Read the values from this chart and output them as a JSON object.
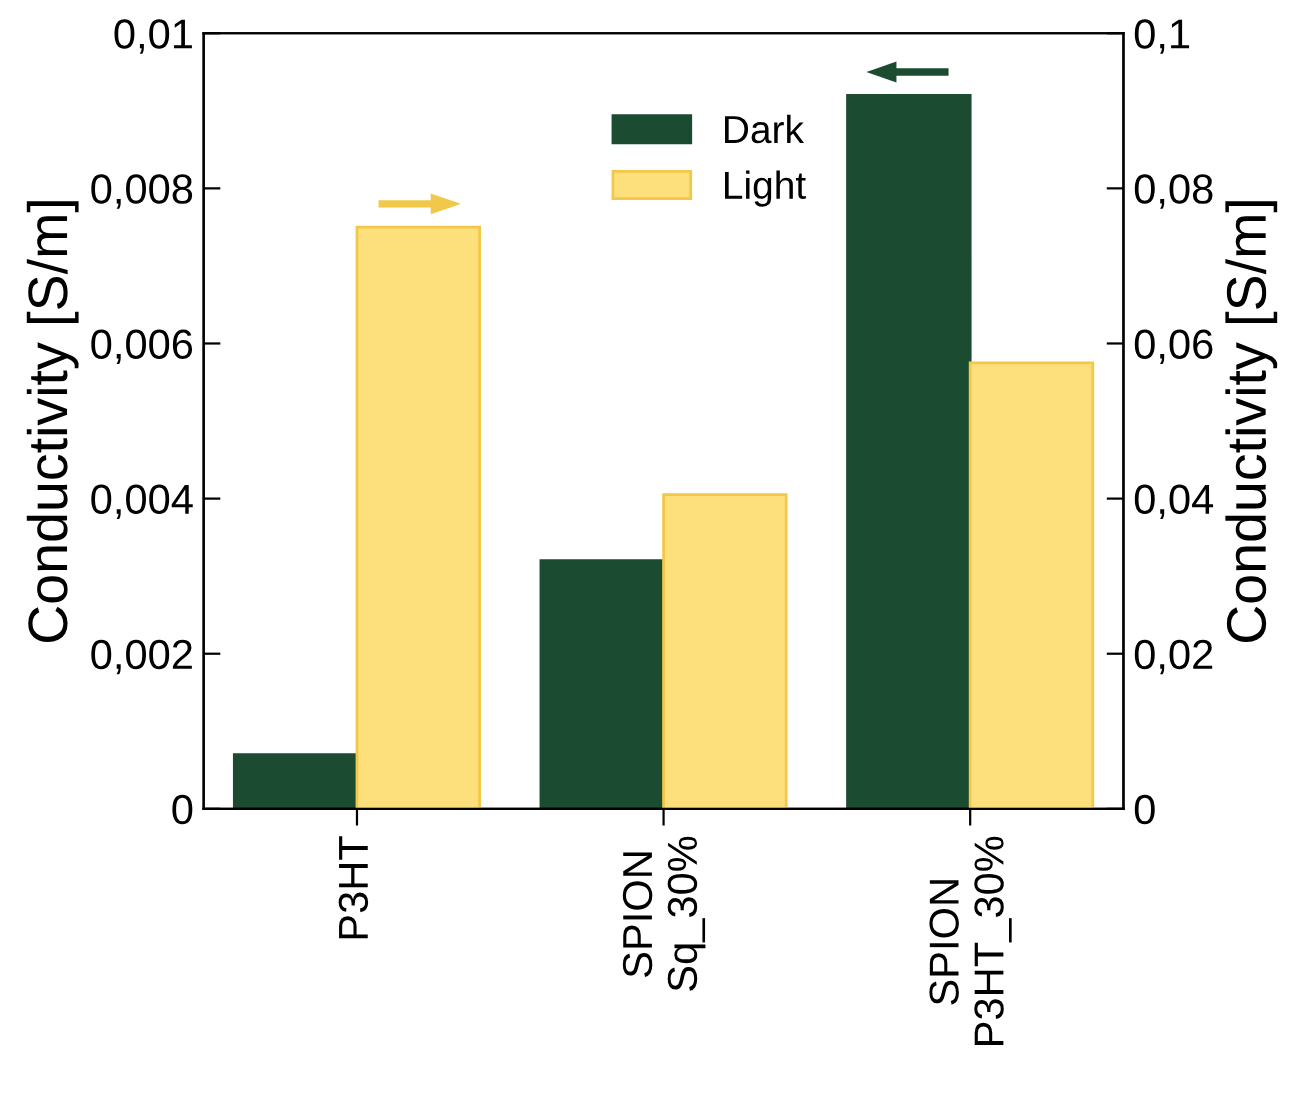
{
  "chart_data": {
    "type": "bar",
    "categories": [
      "P3HT",
      "SPION\nSq_30%",
      "SPION\nP3HT_30%"
    ],
    "series": [
      {
        "name": "Dark",
        "color": "#1b4b31",
        "axis": "y",
        "values": [
          0.0007,
          0.0032,
          0.0092
        ]
      },
      {
        "name": "Light",
        "color": "#fddf7c",
        "axis": "y2",
        "values": [
          0.075,
          0.0405,
          0.0575
        ]
      }
    ],
    "ylabel": "Conductivity [S/m]",
    "y2label": "Conductivity [S/m]",
    "ylim": [
      0,
      0.01
    ],
    "yticks": [
      0,
      {
        "value": 0.002,
        "label": "0,002"
      },
      {
        "value": 0.004,
        "label": "0,004"
      },
      {
        "value": 0.006,
        "label": "0,006"
      },
      {
        "value": 0.008,
        "label": "0,008"
      },
      {
        "value": 0.01,
        "label": "0,01"
      }
    ],
    "y2lim": [
      0,
      0.1
    ],
    "y2ticks": [
      0,
      {
        "value": 0.02,
        "label": "0,02"
      },
      {
        "value": 0.04,
        "label": "0,04"
      },
      {
        "value": 0.06,
        "label": "0,06"
      },
      {
        "value": 0.08,
        "label": "0,08"
      },
      {
        "value": 0.1,
        "label": "0,1"
      }
    ],
    "legend": "top",
    "grid": false
  }
}
